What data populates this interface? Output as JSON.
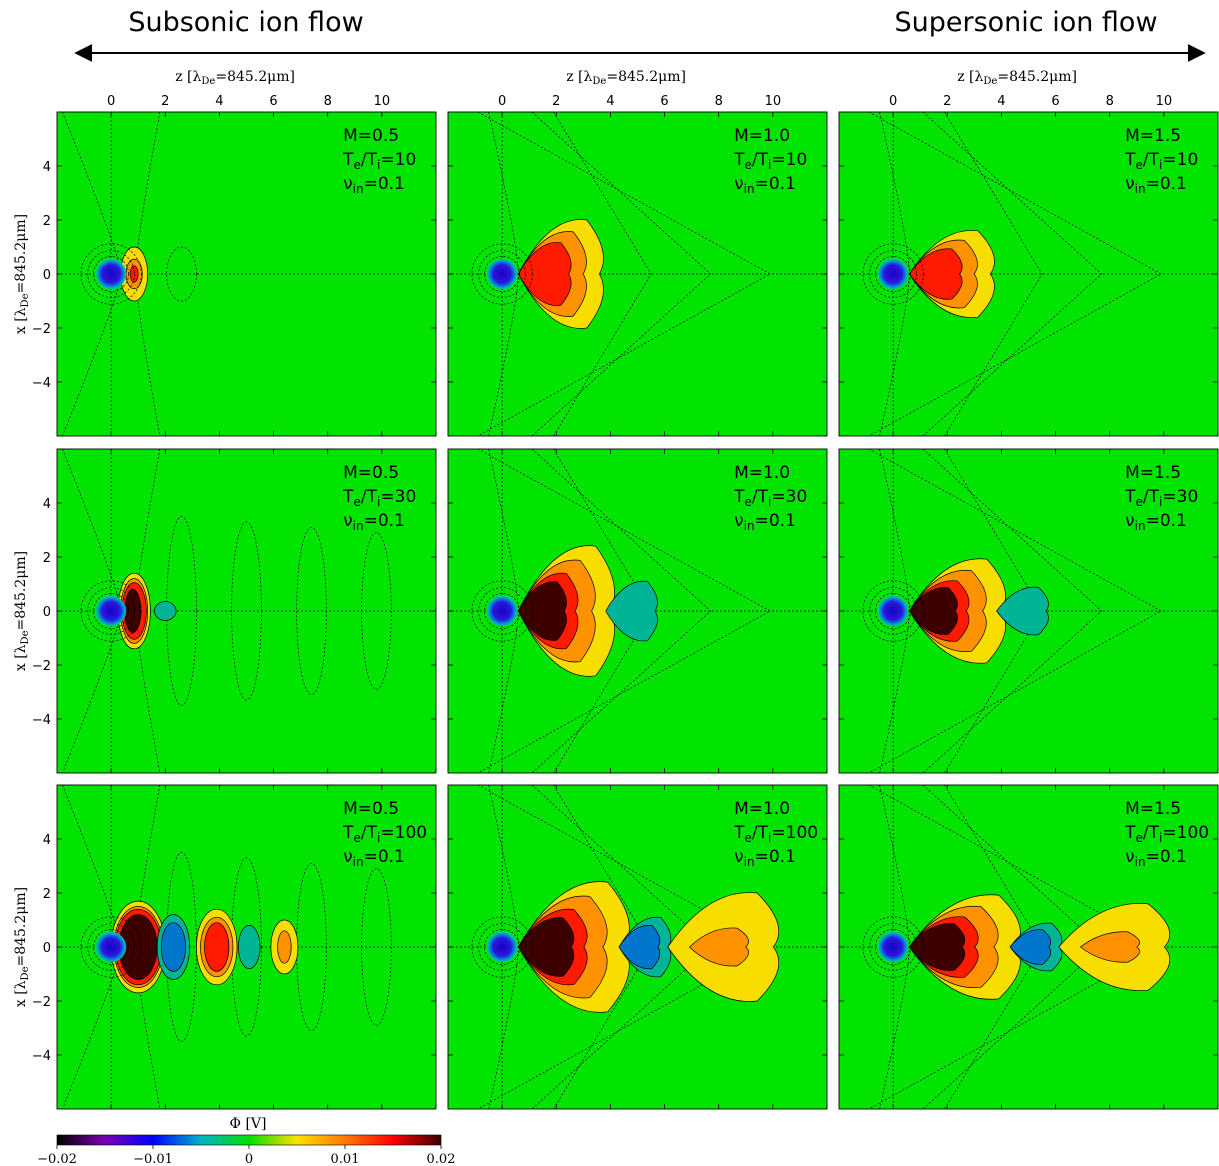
{
  "header": {
    "left_label": "Subsonic ion flow",
    "right_label": "Supersonic ion flow"
  },
  "axes": {
    "z_label": "z [λ",
    "z_sub": "De",
    "z_value": "=845.2μm]",
    "x_label": "x [λ",
    "x_sub": "De",
    "x_value": "=845.2μm]",
    "z_ticks": [
      0,
      2,
      4,
      6,
      8,
      10
    ],
    "x_ticks": [
      4,
      2,
      0,
      -2,
      -4
    ],
    "z_range": [
      -2.0,
      12.0
    ],
    "x_range": [
      -6.0,
      6.0
    ]
  },
  "colorbar": {
    "label": "Φ [V]",
    "ticks": [
      "−0.02",
      "−0.01",
      "0",
      "0.01",
      "0.02"
    ],
    "range": [
      -0.02,
      0.02
    ],
    "colors": [
      "#000000",
      "#7a00b0",
      "#0000ff",
      "#00b4c8",
      "#00e000",
      "#ffe000",
      "#ff7a00",
      "#ff0000",
      "#3a0000"
    ]
  },
  "colors": {
    "background_field": "#00e400",
    "negative_core": "#1a00c8",
    "positive_weak": "#f7dd00",
    "positive_mid": "#ff9200",
    "positive_strong": "#ff1a00",
    "positive_max": "#3c0000",
    "negative_weak": "#00b496",
    "negative_mid": "#0077cc"
  },
  "chart_data": {
    "type": "heatmap",
    "variable": "Φ [V]",
    "panels": [
      {
        "row": 0,
        "col": 0,
        "m_label": "M=0.5",
        "te_ti": "10",
        "nu_in": "0.1",
        "M": 0.5,
        "Te_Ti": 10,
        "nu": 0.1
      },
      {
        "row": 0,
        "col": 1,
        "m_label": "M=1.0",
        "te_ti": "10",
        "nu_in": "0.1",
        "M": 1.0,
        "Te_Ti": 10,
        "nu": 0.1
      },
      {
        "row": 0,
        "col": 2,
        "m_label": "M=1.5",
        "te_ti": "10",
        "nu_in": "0.1",
        "M": 1.5,
        "Te_Ti": 10,
        "nu": 0.1
      },
      {
        "row": 1,
        "col": 0,
        "m_label": "M=0.5",
        "te_ti": "30",
        "nu_in": "0.1",
        "M": 0.5,
        "Te_Ti": 30,
        "nu": 0.1
      },
      {
        "row": 1,
        "col": 1,
        "m_label": "M=1.0",
        "te_ti": "30",
        "nu_in": "0.1",
        "M": 1.0,
        "Te_Ti": 30,
        "nu": 0.1
      },
      {
        "row": 1,
        "col": 2,
        "m_label": "M=1.5",
        "te_ti": "30",
        "nu_in": "0.1",
        "M": 1.5,
        "Te_Ti": 30,
        "nu": 0.1
      },
      {
        "row": 2,
        "col": 0,
        "m_label": "M=0.5",
        "te_ti": "100",
        "nu_in": "0.1",
        "M": 0.5,
        "Te_Ti": 100,
        "nu": 0.1
      },
      {
        "row": 2,
        "col": 1,
        "m_label": "M=1.0",
        "te_ti": "100",
        "nu_in": "0.1",
        "M": 1.0,
        "Te_Ti": 100,
        "nu": 0.1
      },
      {
        "row": 2,
        "col": 2,
        "m_label": "M=1.5",
        "te_ti": "100",
        "nu_in": "0.1",
        "M": 1.5,
        "Te_Ti": 100,
        "nu": 0.1
      }
    ]
  }
}
